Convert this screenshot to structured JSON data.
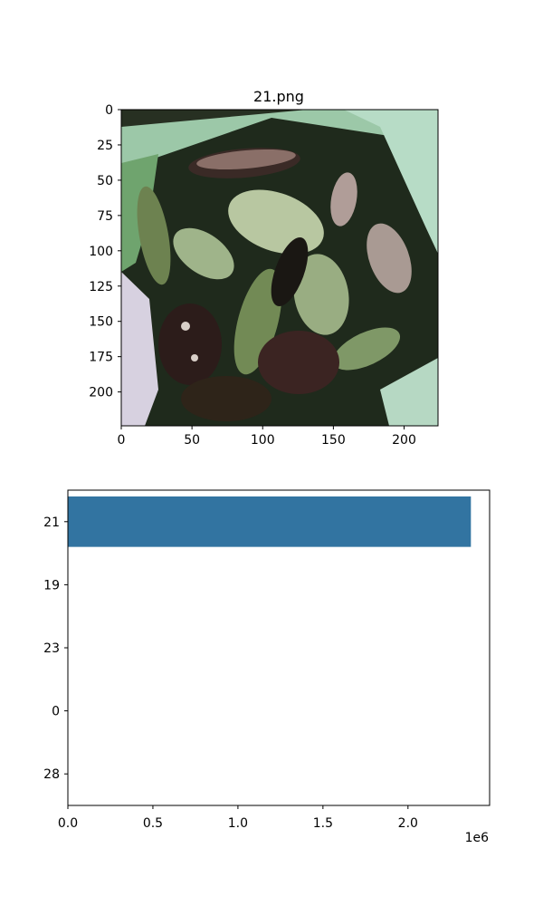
{
  "chart_data": [
    {
      "type": "image",
      "title": "21.png",
      "image_description": "close-up photo of cooked green vegetable slices and dark mushrooms in a light green container",
      "x_ticks": [
        0,
        50,
        100,
        150,
        200
      ],
      "y_ticks": [
        0,
        25,
        50,
        75,
        100,
        125,
        150,
        175,
        200
      ],
      "xlim": [
        0,
        224
      ],
      "ylim": [
        224,
        0
      ]
    },
    {
      "type": "bar",
      "orientation": "horizontal",
      "categories": [
        "21",
        "19",
        "23",
        "0",
        "28"
      ],
      "values": [
        2370000,
        0,
        0,
        0,
        0
      ],
      "xlim": [
        0,
        2480000
      ],
      "x_ticks": [
        0,
        500000,
        1000000,
        1500000,
        2000000
      ],
      "x_tick_labels": [
        "0.0",
        "0.5",
        "1.0",
        "1.5",
        "2.0"
      ],
      "x_offset_label": "1e6",
      "bar_color": "#3274a1"
    }
  ]
}
